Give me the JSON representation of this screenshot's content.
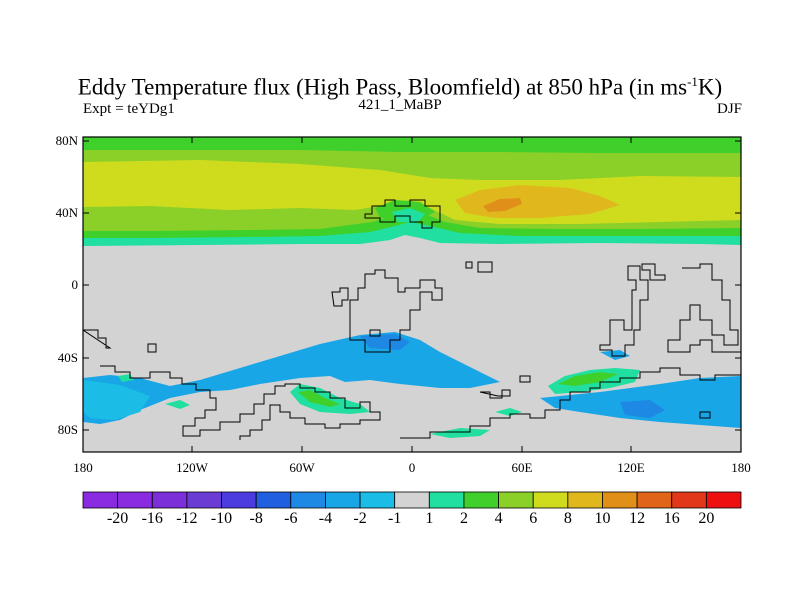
{
  "title_main": "Eddy Temperature flux (High Pass, Bloomfield) at 850 hPa (in ms",
  "title_sup": "-1",
  "title_tail": "K)",
  "subtitle_left": "Expt = teYDg1",
  "subtitle_center": "421_1_MaBP",
  "subtitle_right": "DJF",
  "lat_labels": [
    "80N",
    "40N",
    "0",
    "40S",
    "80S"
  ],
  "lon_labels": [
    "180",
    "120W",
    "60W",
    "0",
    "60E",
    "120E",
    "180"
  ],
  "colorbar": {
    "labels": [
      "-20",
      "-16",
      "-12",
      "-10",
      "-8",
      "-6",
      "-4",
      "-2",
      "-1",
      "1",
      "2",
      "4",
      "6",
      "8",
      "10",
      "12",
      "16",
      "20"
    ],
    "colors": [
      "#8a2be2",
      "#7a2fd8",
      "#6a3cd4",
      "#4b3ce0",
      "#1f5fe0",
      "#1e88e5",
      "#18a6e6",
      "#1bbce6",
      "#d3d3d3",
      "#20dfa0",
      "#3fd02b",
      "#8bd028",
      "#cfdc1e",
      "#e0b81e",
      "#e09018",
      "#e06518",
      "#e03818",
      "#ee1010"
    ]
  },
  "colors": {
    "land_bg": "#d3d3d3",
    "green_band": "#3fd02b",
    "teal_band": "#20dfa0",
    "yellowgreen": "#8bd028",
    "yellow": "#cfdc1e",
    "orange": "#e0b81e",
    "deep_orange": "#e09018",
    "blue": "#18a6e6",
    "lightblue": "#1bbce6",
    "midblue": "#1e88e5"
  }
}
